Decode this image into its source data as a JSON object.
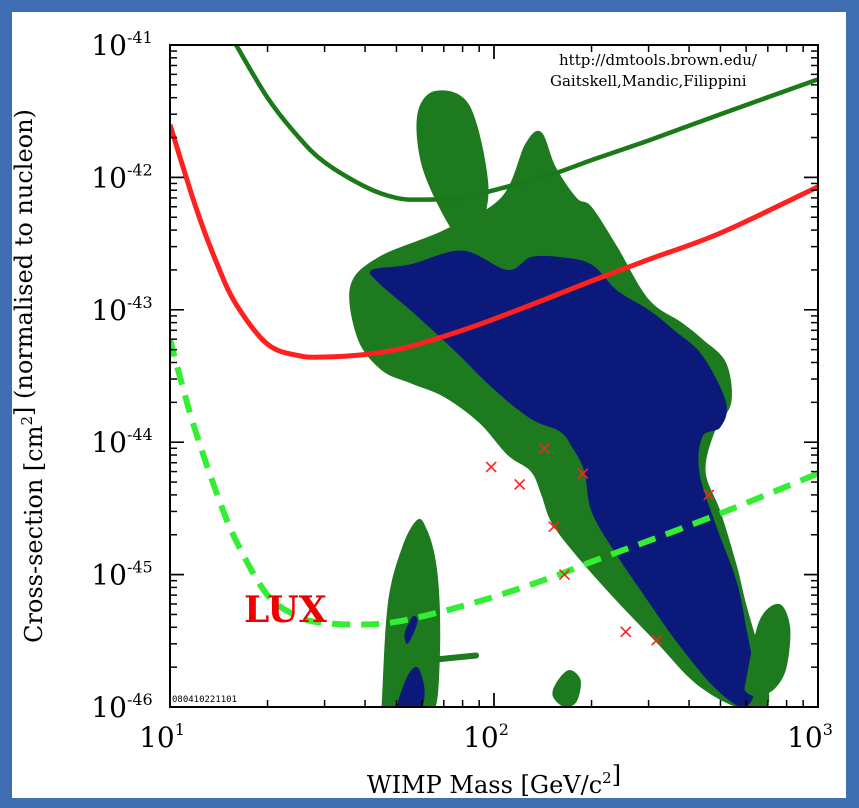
{
  "chart_data": {
    "type": "line",
    "xlabel": "WIMP Mass [GeV/c²]",
    "ylabel": "Cross-section [cm²] (normalised to nucleon)",
    "x_scale": "log",
    "y_scale": "log",
    "xlim": [
      10,
      1000
    ],
    "ylim": [
      1e-46,
      1e-41
    ],
    "x_ticks": [
      {
        "value": 10,
        "base": "10",
        "exp": "1"
      },
      {
        "value": 100,
        "base": "10",
        "exp": "2"
      },
      {
        "value": 1000,
        "base": "10",
        "exp": "3"
      }
    ],
    "y_ticks": [
      {
        "value": 1e-41,
        "base": "10",
        "exp": "-41"
      },
      {
        "value": 1e-42,
        "base": "10",
        "exp": "-42"
      },
      {
        "value": 1e-43,
        "base": "10",
        "exp": "-43"
      },
      {
        "value": 1e-44,
        "base": "10",
        "exp": "-44"
      },
      {
        "value": 1e-45,
        "base": "10",
        "exp": "-45"
      },
      {
        "value": 1e-46,
        "base": "10",
        "exp": "-46"
      }
    ],
    "credit_lines": [
      "http://dmtools.brown.edu/",
      "Gaitskell,Mandic,Filippini"
    ],
    "stamp": "080410221101",
    "annotation": "LUX",
    "colors": {
      "region_outer": "#1e7a1e",
      "region_inner": "#0b1a7a",
      "green_curve": "#1a7a1a",
      "red_curve": "#ff2020",
      "lux_curve": "#33ee33",
      "points": "#ff2020",
      "lux_label": "#ee0000"
    },
    "series": [
      {
        "style": "solid",
        "color_key": "green_curve",
        "x": [
          16,
          20,
          25,
          30,
          40,
          50,
          60,
          80,
          100,
          150,
          200,
          300,
          500,
          1000
        ],
        "y": [
          1e-41,
          4e-42,
          2e-42,
          1.3e-42,
          8.5e-43,
          7e-43,
          6.8e-43,
          7e-43,
          8e-43,
          1.05e-42,
          1.35e-42,
          1.9e-42,
          3e-42,
          5.5e-42
        ]
      },
      {
        "style": "solid",
        "color_key": "red_curve",
        "x": [
          10,
          12,
          14,
          16,
          20,
          25,
          30,
          40,
          50,
          60,
          80,
          100,
          150,
          200,
          300,
          500,
          1000
        ],
        "y": [
          2.5e-42,
          6e-43,
          2.2e-43,
          1.1e-43,
          5.5e-44,
          4.5e-44,
          4.4e-44,
          4.6e-44,
          5e-44,
          5.6e-44,
          7e-44,
          8.5e-44,
          1.25e-43,
          1.65e-43,
          2.4e-43,
          3.8e-43,
          8.5e-43
        ]
      },
      {
        "style": "dashed",
        "color_key": "lux_curve",
        "x": [
          10,
          11,
          12,
          14,
          16,
          20,
          25,
          30,
          40,
          50,
          70,
          100,
          150,
          200,
          300,
          500,
          1000
        ],
        "y": [
          6e-44,
          2.5e-44,
          1.2e-44,
          4e-45,
          1.8e-45,
          7e-46,
          4.8e-46,
          4.3e-46,
          4.2e-46,
          4.4e-46,
          5.3e-46,
          6.8e-46,
          9.5e-46,
          1.25e-45,
          1.8e-45,
          2.9e-45,
          5.8e-45
        ]
      }
    ],
    "points": {
      "x": [
        98,
        120,
        143,
        153,
        165,
        188,
        255,
        318,
        460
      ],
      "y": [
        6.5e-45,
        4.8e-45,
        9e-45,
        2.3e-45,
        1e-45,
        5.8e-45,
        3.7e-46,
        3.2e-46,
        4e-45
      ]
    },
    "regions": [
      {
        "name": "",
        "color_key": "region_outer",
        "x": [
          58,
          66,
          84,
          96,
          90,
          80,
          72,
          60
        ],
        "y": [
          3e-42,
          4.5e-42,
          3.5e-42,
          9e-43,
          4e-43,
          3.5e-43,
          4.5e-43,
          1.2e-42
        ]
      },
      {
        "name": "",
        "color_key": "region_outer",
        "x": [
          36,
          44,
          70,
          105,
          125,
          140,
          155,
          180,
          200,
          240,
          300,
          380,
          440,
          520,
          540,
          480,
          450,
          500,
          560,
          600,
          650,
          700,
          690,
          560,
          420,
          320,
          230,
          175,
          150,
          140,
          130,
          110,
          90,
          70,
          55,
          45,
          38
        ],
        "y": [
          1.5e-43,
          2.5e-43,
          4e-43,
          7e-43,
          1.8e-42,
          2.2e-42,
          1.2e-42,
          7e-43,
          6e-43,
          3e-43,
          1.2e-43,
          8e-44,
          6e-44,
          4e-44,
          2e-44,
          1.2e-44,
          6e-45,
          3e-45,
          1.2e-45,
          6e-46,
          3e-46,
          1.5e-46,
          1e-46,
          1e-46,
          1.5e-46,
          3e-46,
          7e-46,
          1.5e-45,
          2.5e-45,
          4e-45,
          6e-45,
          8e-45,
          1.4e-44,
          2.2e-44,
          2.8e-44,
          3.5e-44,
          6e-44
        ]
      },
      {
        "name": "",
        "color_key": "region_inner",
        "x": [
          42,
          55,
          80,
          110,
          130,
          160,
          200,
          240,
          300,
          360,
          440,
          520,
          500,
          440,
          430,
          480,
          560,
          600,
          640,
          590,
          480,
          370,
          290,
          235,
          200,
          190,
          175,
          160,
          130,
          100,
          75,
          55,
          44
        ],
        "y": [
          2e-43,
          2.2e-43,
          2.8e-43,
          2e-43,
          2.5e-43,
          2.5e-43,
          2.2e-43,
          1.4e-43,
          1e-43,
          7e-44,
          4.5e-44,
          2e-44,
          1.3e-44,
          1.1e-44,
          6e-45,
          2.5e-45,
          9e-46,
          4e-46,
          1.5e-46,
          1e-46,
          1.4e-46,
          3e-46,
          7e-46,
          1.5e-45,
          3e-45,
          6e-45,
          9e-45,
          1.2e-44,
          1.5e-44,
          2.5e-44,
          5e-44,
          1e-43,
          1.6e-43
        ]
      },
      {
        "name": "",
        "color_key": "region_outer",
        "x": [
          45,
          47,
          52,
          58,
          62,
          66,
          68,
          68,
          66,
          60,
          54,
          48,
          45
        ],
        "y": [
          1e-46,
          6e-46,
          1.6e-45,
          2.6e-45,
          2.2e-45,
          1.3e-45,
          6e-46,
          2.2e-46,
          1e-46,
          1e-46,
          1e-46,
          1e-46,
          1e-46
        ]
      },
      {
        "name": "",
        "color_key": "region_inner",
        "x": [
          50,
          54,
          58,
          61,
          60,
          56,
          52
        ],
        "y": [
          1e-46,
          1.7e-46,
          2e-46,
          1.4e-46,
          1e-46,
          1e-46,
          1e-46
        ]
      },
      {
        "name": "",
        "color_key": "region_inner",
        "x": [
          54,
          57,
          58,
          56,
          53
        ],
        "y": [
          3e-46,
          3.8e-46,
          4.6e-46,
          4.8e-46,
          3.6e-46
        ]
      },
      {
        "name": "",
        "color_key": "region_outer",
        "x": [
          600,
          660,
          760,
          820,
          800,
          740,
          660,
          600
        ],
        "y": [
          1.6e-46,
          4.5e-46,
          6e-46,
          4e-46,
          2e-46,
          1.4e-46,
          1.2e-46,
          1.3e-46
        ]
      },
      {
        "name": "",
        "color_key": "region_outer",
        "x": [
          155,
          170,
          185,
          180,
          165,
          152
        ],
        "y": [
          1.5e-46,
          1.9e-46,
          1.6e-46,
          1.1e-46,
          1e-46,
          1.2e-46
        ]
      }
    ],
    "segments": [
      {
        "color_key": "region_outer",
        "x": [
          68,
          88
        ],
        "y": [
          2.3e-46,
          2.45e-46
        ]
      }
    ]
  }
}
